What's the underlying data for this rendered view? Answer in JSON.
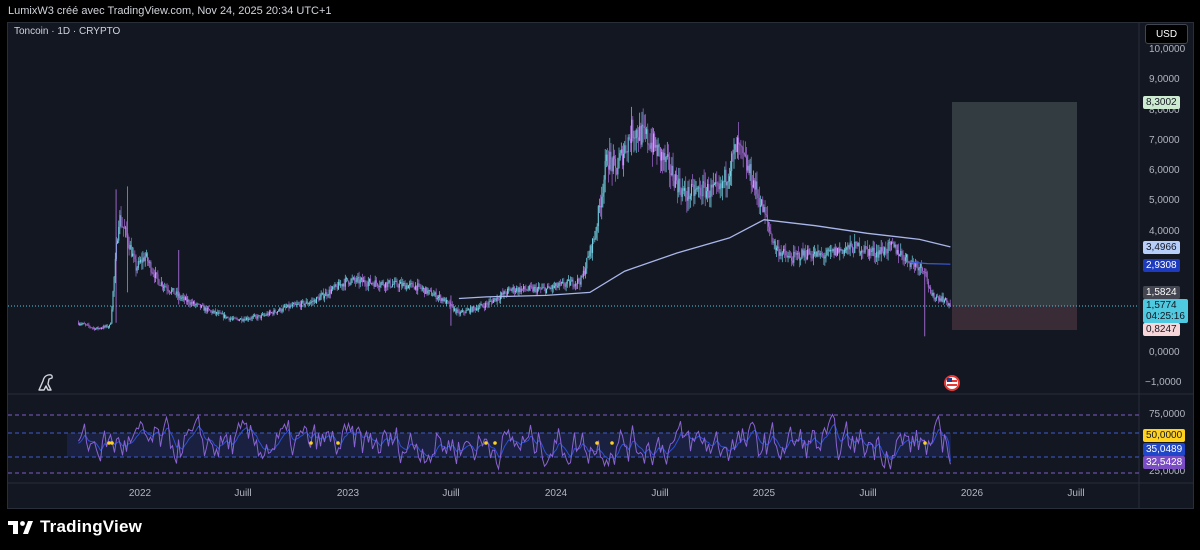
{
  "header": {
    "caption": "LumixW3 créé avec TradingView.com, Nov 24, 2025 20:34 UTC+1"
  },
  "chart": {
    "symbol": "Toncoin · 1D · CRYPTO",
    "currency": "USD"
  },
  "price_axis": [
    "10,0000",
    "9,0000",
    "8,0000",
    "7,0000",
    "6,0000",
    "5,0000",
    "4,0000",
    "0,0000",
    "−1,0000"
  ],
  "price_tags": {
    "target": "8,3002",
    "ma_upper": "3,4966",
    "ma_lower": "2,9308",
    "level": "1,5824",
    "last_price": "1,5774",
    "countdown": "04:25:16",
    "stop": "0,8247"
  },
  "rsi_axis": {
    "level_75": "75,0000",
    "level_25": "25,0000"
  },
  "rsi_tags": {
    "level_50": "50,0000",
    "ma": "35,0489",
    "rsi": "32,5428"
  },
  "time_axis": [
    "2022",
    "Juill",
    "2023",
    "Juill",
    "2024",
    "Juill",
    "2025",
    "Juill",
    "2026",
    "Juill"
  ],
  "footer": {
    "brand": "TradingView"
  },
  "colors": {
    "background": "#131722",
    "candle_up": "#74d3e6",
    "candle_down": "#a56cd6",
    "moving_average": "#a9b6ea",
    "target_zone": "#3a4446",
    "stop_zone": "#3f2f39",
    "rsi_line": "#8a63d2",
    "rsi_ma": "#2b4fd8",
    "tag_target": "#cdebd0",
    "tag_ma_upper": "#b7cef9",
    "tag_ma_lower": "#1e3bbd",
    "tag_last": "#4ec9e0",
    "tag_stop": "#f6d6d9",
    "tag_rsi50": "#ffd21f",
    "tag_rsi_ma": "#2147c9",
    "tag_rsi": "#7b4dc5"
  },
  "chart_data": {
    "type": "candlestick",
    "x_range": [
      "2021-09",
      "2026-08"
    ],
    "ylim": [
      -1,
      10
    ],
    "series": [
      {
        "x": [
          "2021-09-15",
          "2021-10-15",
          "2021-11-10",
          "2021-11-25",
          "2021-12-10",
          "2021-12-25",
          "2022-01-10",
          "2022-02-01",
          "2022-03-15",
          "2022-05-01",
          "2022-06-15",
          "2022-08-01",
          "2022-09-15",
          "2022-11-01",
          "2023-01-01",
          "2023-03-01",
          "2023-05-01",
          "2023-06-15",
          "2023-07-15",
          "2023-09-01",
          "2023-10-15",
          "2023-12-15",
          "2024-02-15",
          "2024-03-10",
          "2024-04-01",
          "2024-04-15",
          "2024-05-15",
          "2024-06-15",
          "2024-07-15",
          "2024-08-15",
          "2024-09-15",
          "2024-10-15",
          "2024-11-15",
          "2024-12-10",
          "2025-01-05",
          "2025-01-20",
          "2025-02-15",
          "2025-03-15",
          "2025-04-15",
          "2025-05-15",
          "2025-06-15",
          "2025-07-15",
          "2025-08-15",
          "2025-09-15",
          "2025-10-10",
          "2025-10-20",
          "2025-11-10",
          "2025-11-24"
        ],
        "values": [
          1.0,
          0.8,
          0.9,
          4.5,
          3.8,
          2.8,
          3.2,
          2.4,
          1.8,
          1.4,
          1.1,
          1.2,
          1.5,
          1.7,
          2.4,
          2.3,
          2.2,
          1.8,
          1.3,
          1.6,
          2.1,
          2.1,
          2.4,
          3.9,
          6.5,
          6.0,
          7.4,
          7.0,
          6.2,
          5.2,
          5.4,
          5.3,
          6.8,
          5.8,
          4.4,
          3.5,
          3.1,
          3.3,
          3.2,
          3.4,
          3.5,
          3.3,
          3.5,
          3.0,
          2.8,
          1.9,
          1.8,
          1.58
        ]
      },
      {
        "name": "MA",
        "x": [
          "2023-07-15",
          "2023-09-01",
          "2023-12-15",
          "2024-03-01",
          "2024-05-01",
          "2024-08-01",
          "2024-11-01",
          "2025-01-01",
          "2025-04-01",
          "2025-07-01",
          "2025-10-01",
          "2025-11-24"
        ],
        "values": [
          1.8,
          1.85,
          1.9,
          2.0,
          2.7,
          3.3,
          3.8,
          4.4,
          4.2,
          3.95,
          3.75,
          3.5
        ]
      },
      {
        "name": "MA 2",
        "x": [
          "2025-09-15",
          "2025-10-15",
          "2025-11-24"
        ],
        "values": [
          3.0,
          2.95,
          2.93
        ]
      }
    ],
    "levels": {
      "target": 8.3002,
      "entry": 1.5824,
      "stop": 0.8247
    },
    "rsi": {
      "levels": [
        75,
        50,
        25
      ],
      "last": 32.5428,
      "ma": 35.0489
    }
  }
}
